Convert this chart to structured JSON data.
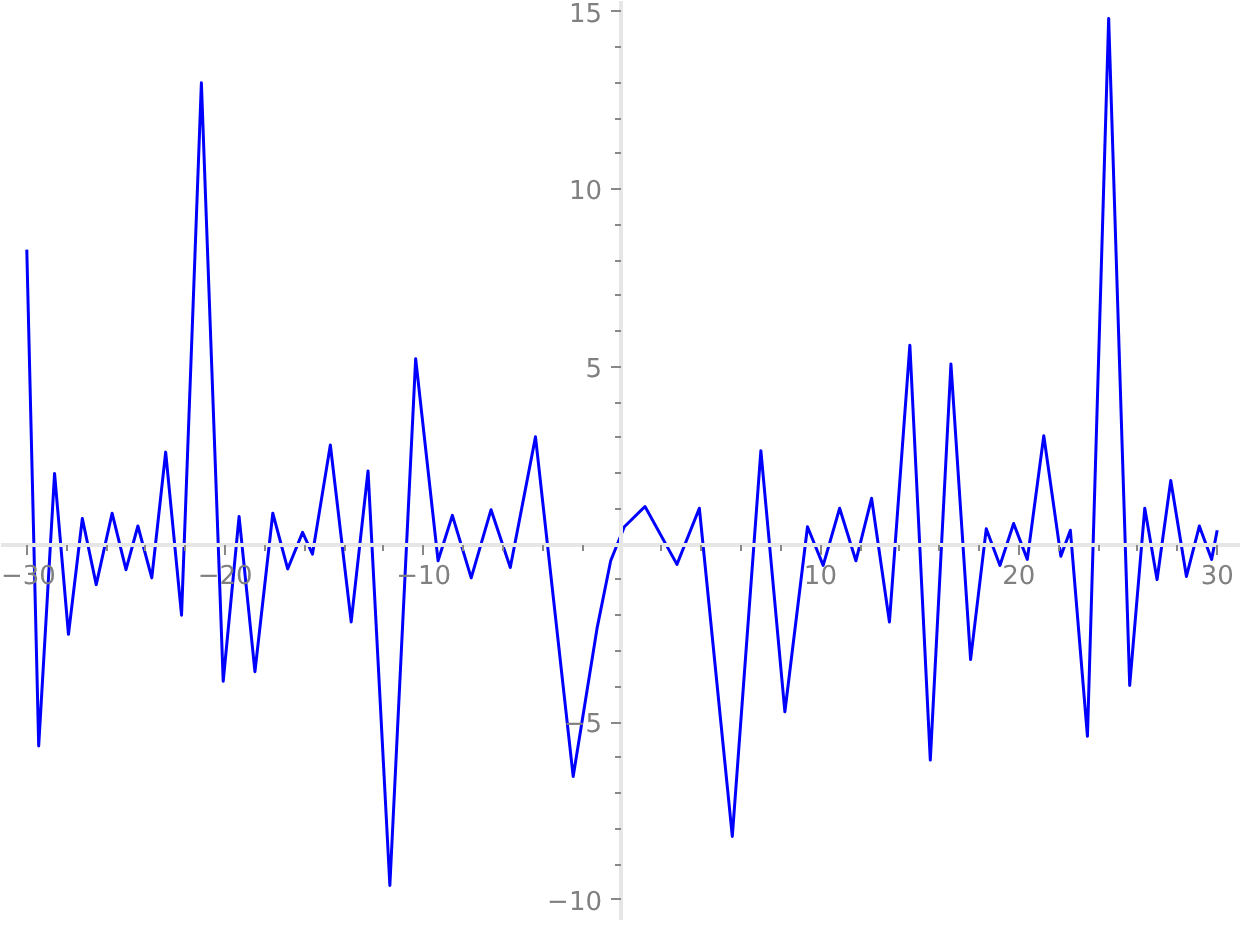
{
  "chart_data": {
    "type": "line",
    "x": [
      -30,
      -29.4,
      -28.6,
      -27.9,
      -27.2,
      -26.5,
      -25.7,
      -25.0,
      -24.4,
      -23.7,
      -23.0,
      -22.2,
      -21.2,
      -20.1,
      -19.3,
      -18.5,
      -17.6,
      -16.85,
      -16.1,
      -15.6,
      -14.7,
      -13.65,
      -12.8,
      -11.7,
      -10.4,
      -9.27,
      -8.55,
      -7.6,
      -6.6,
      -5.63,
      -4.36,
      -2.46,
      -1.26,
      -0.57,
      0.12,
      1.16,
      2.77,
      3.9,
      5.56,
      7.0,
      8.21,
      9.35,
      10.14,
      10.97,
      11.79,
      12.58,
      13.48,
      14.51,
      15.54,
      16.58,
      17.57,
      18.36,
      19.05,
      19.74,
      20.43,
      21.26,
      22.12,
      22.6,
      23.46,
      24.53,
      25.59,
      26.35,
      26.97,
      27.66,
      28.45,
      29.1,
      29.72,
      30.0
    ],
    "series": [
      {
        "color": "#0000ff",
        "values": [
          8.3,
          -5.67,
          2.0,
          -2.53,
          0.73,
          -1.13,
          0.88,
          -0.71,
          0.52,
          -0.94,
          2.6,
          -1.99,
          13.0,
          -3.85,
          0.79,
          -3.58,
          0.88,
          -0.69,
          0.34,
          -0.27,
          2.8,
          -2.18,
          2.07,
          -9.6,
          5.23,
          -0.46,
          0.82,
          -0.94,
          0.98,
          -0.65,
          3.03,
          -6.53,
          -2.37,
          -0.46,
          0.5,
          1.07,
          -0.56,
          1.02,
          -8.22,
          2.64,
          -4.71,
          0.5,
          -0.59,
          1.02,
          -0.46,
          1.3,
          -2.18,
          5.61,
          -6.07,
          5.08,
          -3.24,
          0.44,
          -0.59,
          0.59,
          -0.42,
          3.06,
          -0.33,
          0.4,
          -5.4,
          14.81,
          -3.97,
          1.02,
          -0.99,
          1.8,
          -0.9,
          0.52,
          -0.42,
          0.4
        ]
      }
    ],
    "xlim": [
      -31.3,
      31.2
    ],
    "ylim": [
      -10.6,
      15.3
    ],
    "xticks": [
      -30,
      {
        "value": -28,
        "label": null
      },
      {
        "value": -26,
        "label": null
      },
      {
        "value": -24,
        "label": null
      },
      {
        "value": -22,
        "label": null
      },
      -20,
      {
        "value": -18,
        "label": null
      },
      {
        "value": -16,
        "label": null
      },
      {
        "value": -14,
        "label": null
      },
      {
        "value": -12,
        "label": null
      },
      -10,
      {
        "value": -8,
        "label": null
      },
      {
        "value": -6,
        "label": null
      },
      {
        "value": -4,
        "label": null
      },
      {
        "value": -2,
        "label": null
      },
      {
        "value": 2,
        "label": null
      },
      {
        "value": 4,
        "label": null
      },
      {
        "value": 6,
        "label": null
      },
      {
        "value": 8,
        "label": null
      },
      10,
      {
        "value": 12,
        "label": null
      },
      {
        "value": 14,
        "label": null
      },
      {
        "value": 16,
        "label": null
      },
      {
        "value": 18,
        "label": null
      },
      20,
      {
        "value": 22,
        "label": null
      },
      {
        "value": 24,
        "label": null
      },
      {
        "value": 26,
        "label": null
      },
      {
        "value": 28,
        "label": null
      },
      30
    ],
    "yticks": [
      -10,
      {
        "value": -9,
        "label": null
      },
      {
        "value": -8,
        "label": null
      },
      {
        "value": -7,
        "label": null
      },
      {
        "value": -6,
        "label": null
      },
      -5,
      {
        "value": -4,
        "label": null
      },
      {
        "value": -3,
        "label": null
      },
      {
        "value": -2,
        "label": null
      },
      {
        "value": -1,
        "label": null
      },
      {
        "value": 1,
        "label": null
      },
      {
        "value": 2,
        "label": null
      },
      {
        "value": 3,
        "label": null
      },
      {
        "value": 4,
        "label": null
      },
      5,
      {
        "value": 6,
        "label": null
      },
      {
        "value": 7,
        "label": null
      },
      {
        "value": 8,
        "label": null
      },
      {
        "value": 9,
        "label": null
      },
      10,
      {
        "value": 11,
        "label": null
      },
      {
        "value": 12,
        "label": null
      },
      {
        "value": 13,
        "label": null
      },
      {
        "value": 14,
        "label": null
      },
      15
    ],
    "grid": false,
    "marker": "none",
    "line_style": "solid"
  }
}
